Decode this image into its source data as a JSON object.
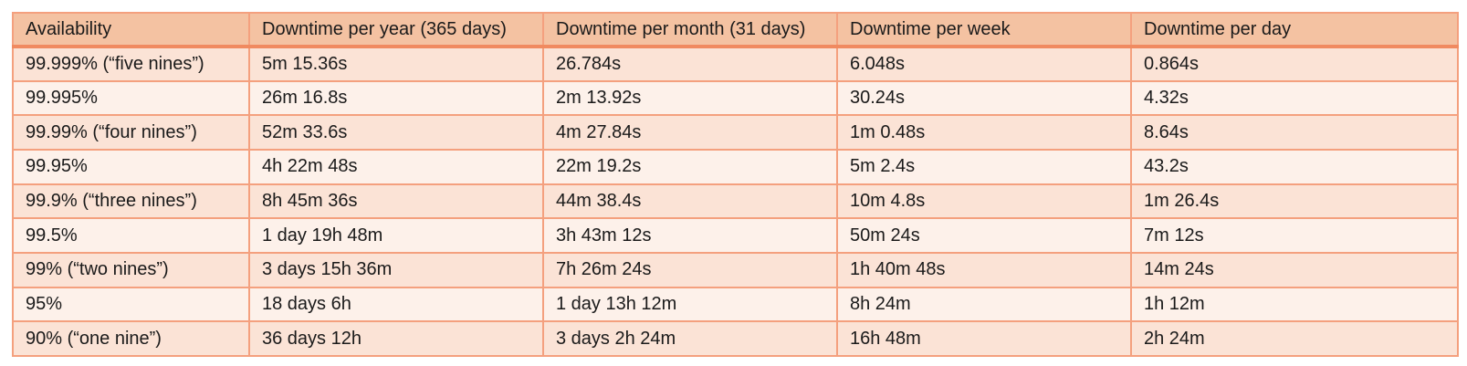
{
  "table": {
    "headers": [
      "Availability",
      "Downtime per year (365 days)",
      "Downtime per month (31 days)",
      "Downtime per week",
      "Downtime per day"
    ],
    "rows": [
      [
        "99.999% (“five nines”)",
        "5m 15.36s",
        "26.784s",
        "6.048s",
        "0.864s"
      ],
      [
        "99.995%",
        "26m 16.8s",
        "2m 13.92s",
        "30.24s",
        "4.32s"
      ],
      [
        "99.99% (“four nines”)",
        "52m 33.6s",
        "4m 27.84s",
        "1m 0.48s",
        "8.64s"
      ],
      [
        "99.95%",
        "4h 22m 48s",
        "22m 19.2s",
        "5m 2.4s",
        "43.2s"
      ],
      [
        "99.9% (“three nines”)",
        "8h 45m 36s",
        "44m 38.4s",
        "10m 4.8s",
        "1m 26.4s"
      ],
      [
        "99.5%",
        "1 day 19h 48m",
        "3h 43m 12s",
        "50m 24s",
        "7m 12s"
      ],
      [
        "99% (“two nines”)",
        "3 days 15h 36m",
        "7h 26m 24s",
        "1h 40m 48s",
        "14m 24s"
      ],
      [
        "95%",
        "18 days 6h",
        "1 day 13h 12m",
        "8h 24m",
        "1h 12m"
      ],
      [
        "90% (“one nine”)",
        "36 days 12h",
        "3 days 2h 24m",
        "16h 48m",
        "2h 24m"
      ]
    ]
  },
  "colors": {
    "header_bg": "#f4c2a2",
    "row_odd_bg": "#fbe3d6",
    "row_even_bg": "#fdf1ea",
    "border": "#f4a07e",
    "header_rule": "#f08a60",
    "text": "#1a1a1a"
  }
}
